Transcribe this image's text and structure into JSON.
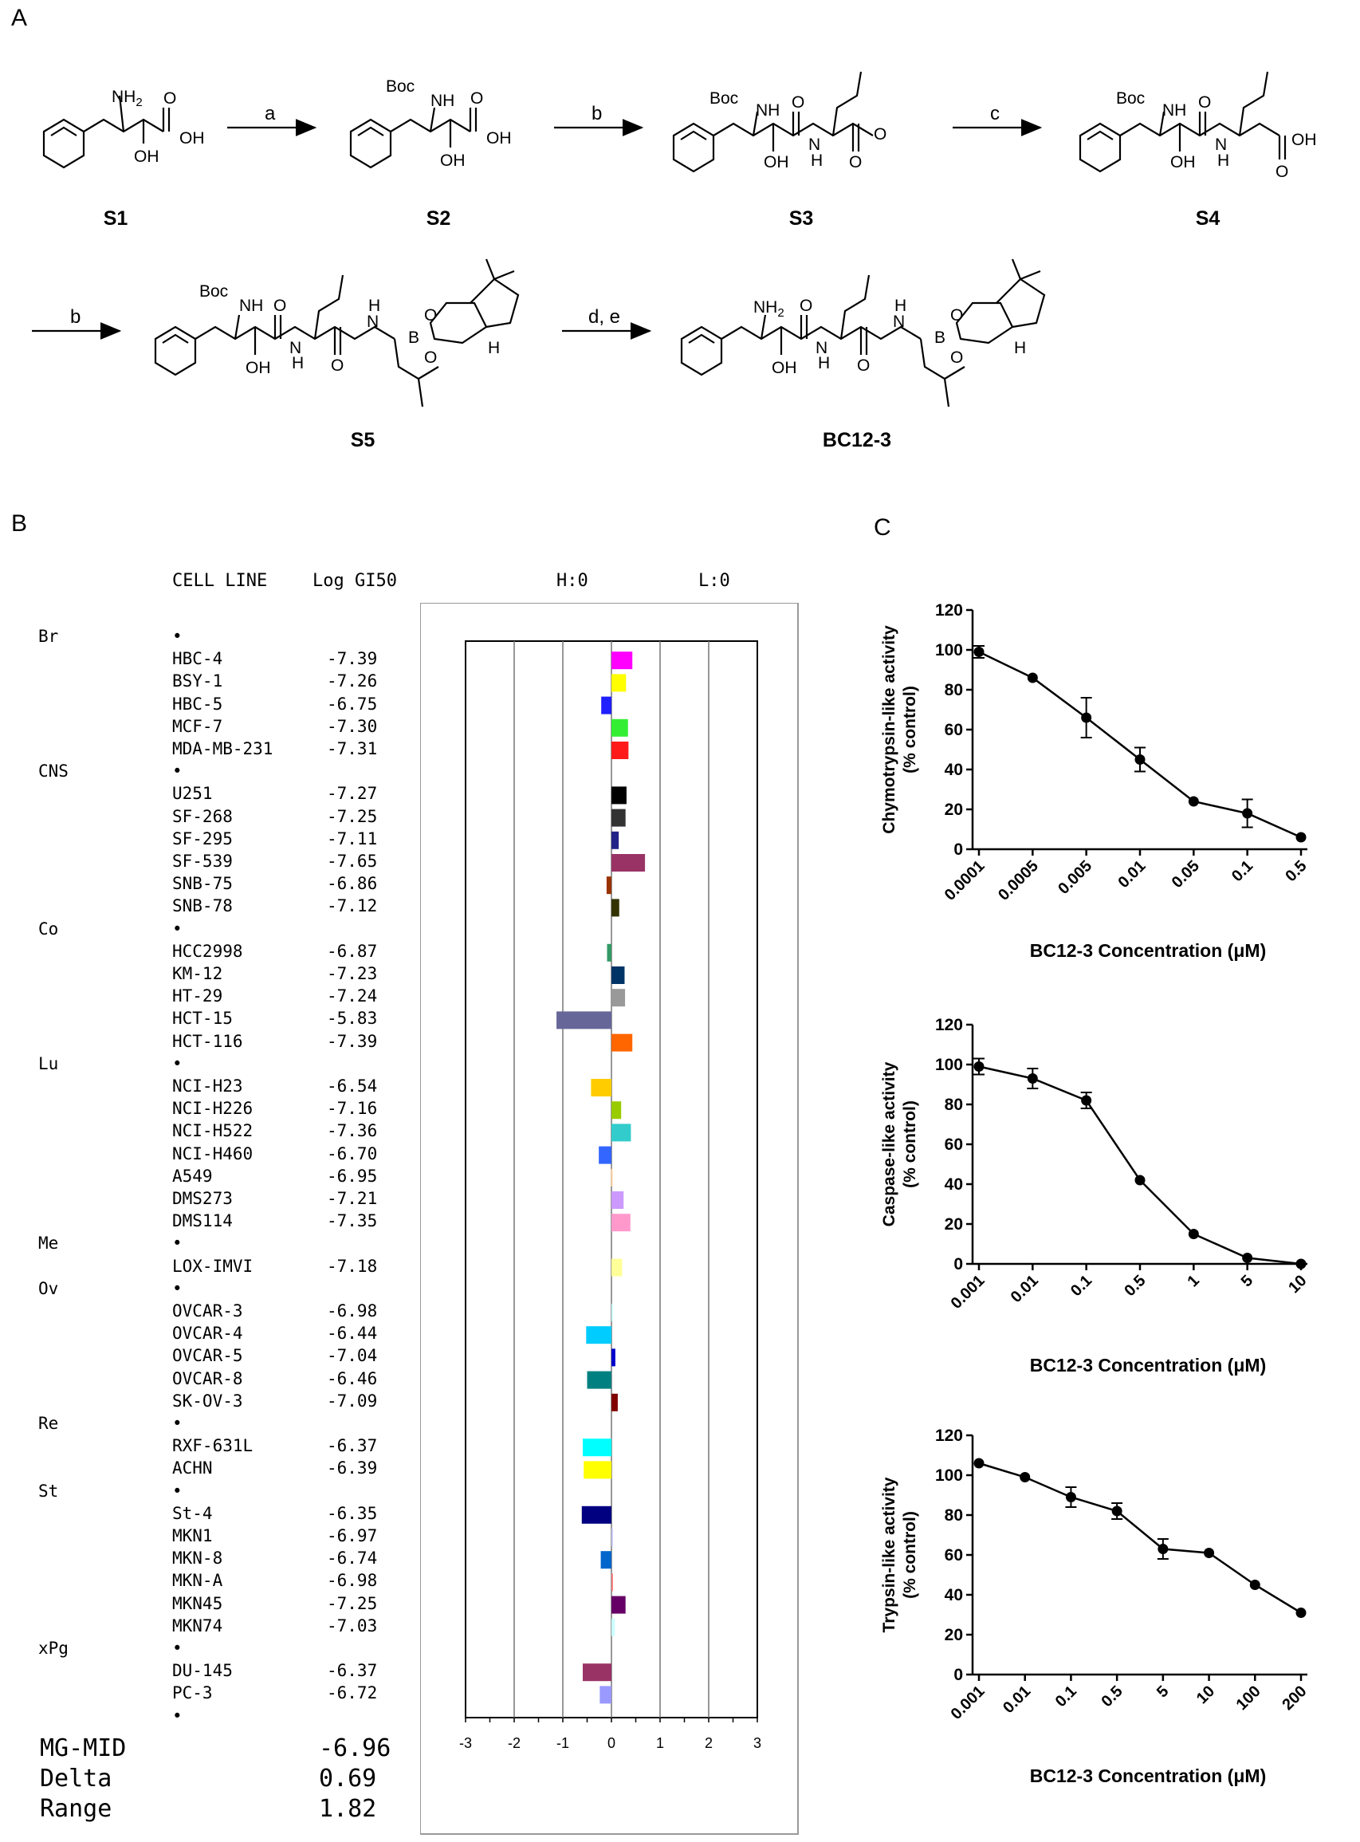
{
  "panels": {
    "a": "A",
    "b": "B",
    "c": "C"
  },
  "scheme": {
    "steps": [
      "a",
      "b",
      "c",
      "b",
      "d, e"
    ],
    "compounds": [
      "S1",
      "S2",
      "S3",
      "S4",
      "S5",
      "BC12-3"
    ],
    "groups": {
      "nh2": "NH",
      "nh2_sub": "2",
      "nh": "NH",
      "oh": "OH",
      "o": "O",
      "boc": "Boc",
      "n": "N",
      "h": "H",
      "b": "B"
    }
  },
  "nci": {
    "col_cell": "CELL LINE",
    "col_log": "Log GI50",
    "h_label": "H:0",
    "l_label": "L:0",
    "axis_ticks": [
      "-3",
      "-2",
      "-1",
      "0",
      "1",
      "2",
      "3"
    ],
    "bullet": "•",
    "groups": [
      {
        "name": "Br",
        "lines": [
          {
            "cell": "HBC-4",
            "log": "-7.39",
            "color": "#ff00ff"
          },
          {
            "cell": "BSY-1",
            "log": "-7.26",
            "color": "#ffff00"
          },
          {
            "cell": "HBC-5",
            "log": "-6.75",
            "color": "#1f1fff"
          },
          {
            "cell": "MCF-7",
            "log": "-7.30",
            "color": "#33ee33"
          },
          {
            "cell": "MDA-MB-231",
            "log": "-7.31",
            "color": "#ff1a1a"
          }
        ]
      },
      {
        "name": "CNS",
        "lines": [
          {
            "cell": "U251",
            "log": "-7.27",
            "color": "#000000"
          },
          {
            "cell": "SF-268",
            "log": "-7.25",
            "color": "#333333"
          },
          {
            "cell": "SF-295",
            "log": "-7.11",
            "color": "#222288"
          },
          {
            "cell": "SF-539",
            "log": "-7.65",
            "color": "#993366"
          },
          {
            "cell": "SNB-75",
            "log": "-6.86",
            "color": "#993300"
          },
          {
            "cell": "SNB-78",
            "log": "-7.12",
            "color": "#333300"
          }
        ]
      },
      {
        "name": "Co",
        "lines": [
          {
            "cell": "HCC2998",
            "log": "-6.87",
            "color": "#339966"
          },
          {
            "cell": "KM-12",
            "log": "-7.23",
            "color": "#003366"
          },
          {
            "cell": "HT-29",
            "log": "-7.24",
            "color": "#999999"
          },
          {
            "cell": "HCT-15",
            "log": "-5.83",
            "color": "#666699"
          },
          {
            "cell": "HCT-116",
            "log": "-7.39",
            "color": "#ff6600"
          }
        ]
      },
      {
        "name": "Lu",
        "lines": [
          {
            "cell": "NCI-H23",
            "log": "-6.54",
            "color": "#ffcc00"
          },
          {
            "cell": "NCI-H226",
            "log": "-7.16",
            "color": "#99cc00"
          },
          {
            "cell": "NCI-H522",
            "log": "-7.36",
            "color": "#33cccc"
          },
          {
            "cell": "NCI-H460",
            "log": "-6.70",
            "color": "#3366ff"
          },
          {
            "cell": "A549",
            "log": "-6.95",
            "color": "#ffcc99"
          },
          {
            "cell": "DMS273",
            "log": "-7.21",
            "color": "#cc99ff"
          },
          {
            "cell": "DMS114",
            "log": "-7.35",
            "color": "#ff99cc"
          }
        ]
      },
      {
        "name": "Me",
        "lines": [
          {
            "cell": "LOX-IMVI",
            "log": "-7.18",
            "color": "#ffff99"
          }
        ]
      },
      {
        "name": "Ov",
        "lines": [
          {
            "cell": "OVCAR-3",
            "log": "-6.98",
            "color": "#ccffff"
          },
          {
            "cell": "OVCAR-4",
            "log": "-6.44",
            "color": "#00ccff"
          },
          {
            "cell": "OVCAR-5",
            "log": "-7.04",
            "color": "#0000cc"
          },
          {
            "cell": "OVCAR-8",
            "log": "-6.46",
            "color": "#008080"
          },
          {
            "cell": "SK-OV-3",
            "log": "-7.09",
            "color": "#800000"
          }
        ]
      },
      {
        "name": "Re",
        "lines": [
          {
            "cell": "RXF-631L",
            "log": "-6.37",
            "color": "#00ffff"
          },
          {
            "cell": "ACHN",
            "log": "-6.39",
            "color": "#ffff00"
          }
        ]
      },
      {
        "name": "St",
        "lines": [
          {
            "cell": "St-4",
            "log": "-6.35",
            "color": "#000080"
          },
          {
            "cell": "MKN1",
            "log": "-6.97",
            "color": "#ccccff"
          },
          {
            "cell": "MKN-8",
            "log": "-6.74",
            "color": "#0066cc"
          },
          {
            "cell": "MKN-A",
            "log": "-6.98",
            "color": "#ff8080"
          },
          {
            "cell": "MKN45",
            "log": "-7.25",
            "color": "#660066"
          },
          {
            "cell": "MKN74",
            "log": "-7.03",
            "color": "#ccffff"
          }
        ]
      },
      {
        "name": "xPg",
        "lines": [
          {
            "cell": "DU-145",
            "log": "-6.37",
            "color": "#993366"
          },
          {
            "cell": "PC-3",
            "log": "-6.72",
            "color": "#9999ff"
          }
        ]
      }
    ],
    "summary": [
      {
        "label": "MG-MID",
        "value": "-6.96"
      },
      {
        "label": "Delta",
        "value": "0.69"
      },
      {
        "label": "Range",
        "value": "1.82"
      }
    ]
  },
  "chart_data": [
    {
      "type": "line",
      "x": [
        "0.0001",
        "0.0005",
        "0.005",
        "0.01",
        "0.05",
        "0.1",
        "0.5"
      ],
      "values": [
        99,
        86,
        66,
        45,
        24,
        18,
        6
      ],
      "errors": [
        3,
        0,
        10,
        6,
        0,
        7,
        0
      ],
      "ylabel_top": "Chymotrypsin-like activity",
      "ylabel_bottom": "(% control)",
      "xlabel": "BC12-3 Concentration (μM)",
      "ylim": [
        0,
        120
      ],
      "yticks": [
        "0",
        "20",
        "40",
        "60",
        "80",
        "100",
        "120"
      ]
    },
    {
      "type": "line",
      "x": [
        "0.001",
        "0.01",
        "0.1",
        "0.5",
        "1",
        "5",
        "10"
      ],
      "values": [
        99,
        93,
        82,
        42,
        15,
        3,
        0
      ],
      "errors": [
        4,
        5,
        4,
        0,
        0,
        0,
        0
      ],
      "ylabel_top": "Caspase-like activity",
      "ylabel_bottom": "(% control)",
      "xlabel": "BC12-3 Concentration (μM)",
      "ylim": [
        0,
        120
      ],
      "yticks": [
        "0",
        "20",
        "40",
        "60",
        "80",
        "100",
        "120"
      ]
    },
    {
      "type": "line",
      "x": [
        "0.001",
        "0.01",
        "0.1",
        "0.5",
        "5",
        "10",
        "100",
        "200"
      ],
      "values": [
        106,
        99,
        89,
        82,
        63,
        61,
        45,
        31
      ],
      "errors": [
        0,
        0,
        5,
        4,
        5,
        0,
        0,
        0
      ],
      "ylabel_top": "Trypsin-like activity",
      "ylabel_bottom": "(% control)",
      "xlabel": "BC12-3 Concentration (μM)",
      "ylim": [
        0,
        120
      ],
      "yticks": [
        "0",
        "20",
        "40",
        "60",
        "80",
        "100",
        "120"
      ]
    }
  ]
}
